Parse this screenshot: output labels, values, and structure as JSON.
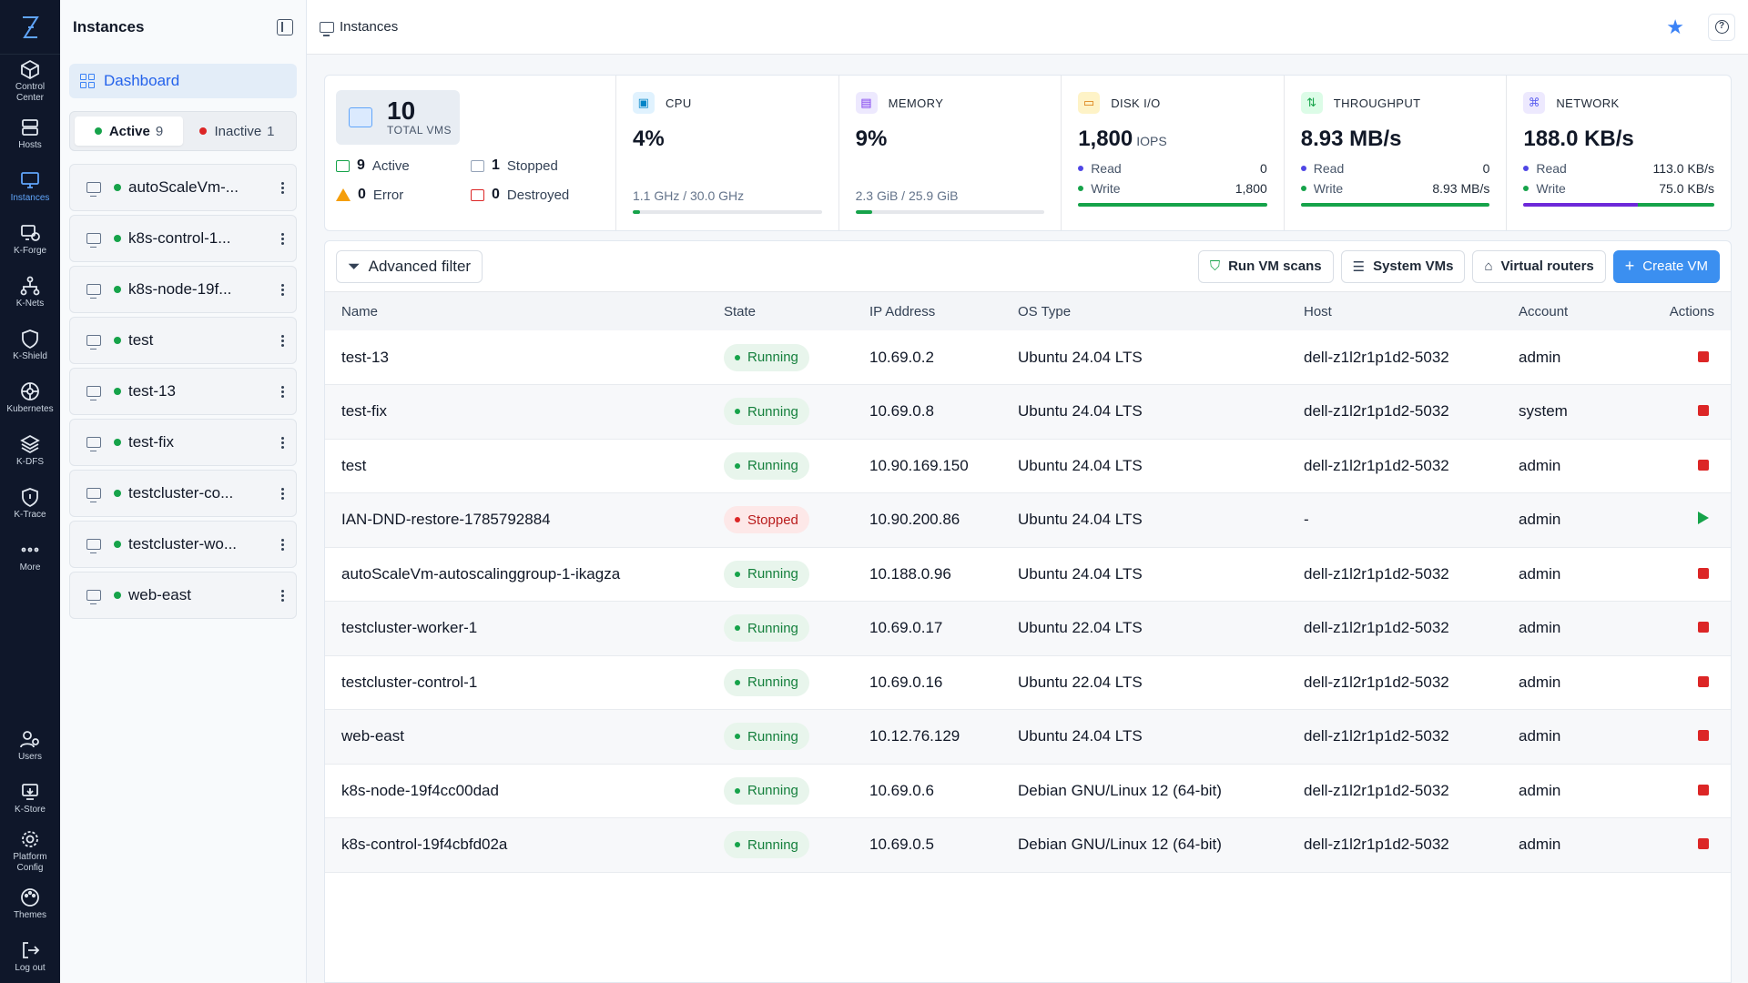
{
  "rail": {
    "items": [
      {
        "label": "Control\nCenter",
        "icon": "cube-icon"
      },
      {
        "label": "Hosts",
        "icon": "server-icon"
      },
      {
        "label": "Instances",
        "icon": "monitor-icon",
        "active": true
      },
      {
        "label": "K-Forge",
        "icon": "forge-icon"
      },
      {
        "label": "K-Nets",
        "icon": "network-icon"
      },
      {
        "label": "K-Shield",
        "icon": "shield-icon"
      },
      {
        "label": "Kubernetes",
        "icon": "kubernetes-icon"
      },
      {
        "label": "K-DFS",
        "icon": "layers-icon"
      },
      {
        "label": "K-Trace",
        "icon": "trace-icon"
      },
      {
        "label": "More",
        "icon": "more-icon"
      }
    ],
    "bottom_items": [
      {
        "label": "Users",
        "icon": "users-icon"
      },
      {
        "label": "K-Store",
        "icon": "store-icon"
      },
      {
        "label": "Platform\nConfig",
        "icon": "gear-icon"
      },
      {
        "label": "Themes",
        "icon": "palette-icon"
      },
      {
        "label": "Log out",
        "icon": "logout-icon"
      }
    ]
  },
  "sidebar": {
    "title": "Instances",
    "dashboard_label": "Dashboard",
    "filter": {
      "active_label": "Active",
      "active_count": "9",
      "inactive_label": "Inactive",
      "inactive_count": "1"
    },
    "vms": [
      "autoScaleVm-...",
      "k8s-control-1...",
      "k8s-node-19f...",
      "test",
      "test-13",
      "test-fix",
      "testcluster-co...",
      "testcluster-wo...",
      "web-east"
    ]
  },
  "topbar": {
    "breadcrumb": "Instances"
  },
  "stats": {
    "total": {
      "value": "10",
      "label": "TOTAL VMS",
      "active_count": "9",
      "active_label": "Active",
      "stopped_count": "1",
      "stopped_label": "Stopped",
      "error_count": "0",
      "error_label": "Error",
      "destroyed_count": "0",
      "destroyed_label": "Destroyed"
    },
    "cpu": {
      "title": "CPU",
      "value": "4%",
      "sub": "1.1 GHz / 30.0 GHz",
      "progress": 0.04
    },
    "memory": {
      "title": "MEMORY",
      "value": "9%",
      "sub": "2.3 GiB / 25.9 GiB",
      "progress": 0.09
    },
    "disk": {
      "title": "DISK I/O",
      "value": "1,800",
      "unit": "IOPS",
      "read_label": "Read",
      "read": "0",
      "write_label": "Write",
      "write": "1,800",
      "write_fraction": 1.0
    },
    "throughput": {
      "title": "THROUGHPUT",
      "value": "8.93 MB/s",
      "read_label": "Read",
      "read": "0",
      "write_label": "Write",
      "write": "8.93 MB/s",
      "write_fraction": 1.0
    },
    "network": {
      "title": "NETWORK",
      "value": "188.0 KB/s",
      "read_label": "Read",
      "read": "113.0 KB/s",
      "write_label": "Write",
      "write": "75.0 KB/s",
      "read_fraction": 0.6
    }
  },
  "toolbar": {
    "advanced_filter": "Advanced filter",
    "run_scans": "Run VM scans",
    "system_vms": "System VMs",
    "virtual_routers": "Virtual routers",
    "create_vm": "Create VM"
  },
  "table": {
    "columns": [
      "Name",
      "State",
      "IP Address",
      "OS Type",
      "Host",
      "Account",
      "Actions"
    ],
    "rows": [
      {
        "name": "test-13",
        "state": "Running",
        "ip": "10.69.0.2",
        "os": "Ubuntu 24.04 LTS",
        "host": "dell-z1l2r1p1d2-5032",
        "account": "admin"
      },
      {
        "name": "test-fix",
        "state": "Running",
        "ip": "10.69.0.8",
        "os": "Ubuntu 24.04 LTS",
        "host": "dell-z1l2r1p1d2-5032",
        "account": "system"
      },
      {
        "name": "test",
        "state": "Running",
        "ip": "10.90.169.150",
        "os": "Ubuntu 24.04 LTS",
        "host": "dell-z1l2r1p1d2-5032",
        "account": "admin"
      },
      {
        "name": "IAN-DND-restore-1785792884",
        "state": "Stopped",
        "ip": "10.90.200.86",
        "os": "Ubuntu 24.04 LTS",
        "host": "-",
        "account": "admin"
      },
      {
        "name": "autoScaleVm-autoscalinggroup-1-ikagza",
        "state": "Running",
        "ip": "10.188.0.96",
        "os": "Ubuntu 24.04 LTS",
        "host": "dell-z1l2r1p1d2-5032",
        "account": "admin"
      },
      {
        "name": "testcluster-worker-1",
        "state": "Running",
        "ip": "10.69.0.17",
        "os": "Ubuntu 22.04 LTS",
        "host": "dell-z1l2r1p1d2-5032",
        "account": "admin"
      },
      {
        "name": "testcluster-control-1",
        "state": "Running",
        "ip": "10.69.0.16",
        "os": "Ubuntu 22.04 LTS",
        "host": "dell-z1l2r1p1d2-5032",
        "account": "admin"
      },
      {
        "name": "web-east",
        "state": "Running",
        "ip": "10.12.76.129",
        "os": "Ubuntu 24.04 LTS",
        "host": "dell-z1l2r1p1d2-5032",
        "account": "admin"
      },
      {
        "name": "k8s-node-19f4cc00dad",
        "state": "Running",
        "ip": "10.69.0.6",
        "os": "Debian GNU/Linux 12 (64-bit)",
        "host": "dell-z1l2r1p1d2-5032",
        "account": "admin"
      },
      {
        "name": "k8s-control-19f4cbfd02a",
        "state": "Running",
        "ip": "10.69.0.5",
        "os": "Debian GNU/Linux 12 (64-bit)",
        "host": "dell-z1l2r1p1d2-5032",
        "account": "admin"
      }
    ]
  },
  "colors": {
    "accent": "#3b8ff0",
    "running": "#16a34a",
    "stopped": "#dc2626",
    "rail_bg": "#0f172a"
  }
}
